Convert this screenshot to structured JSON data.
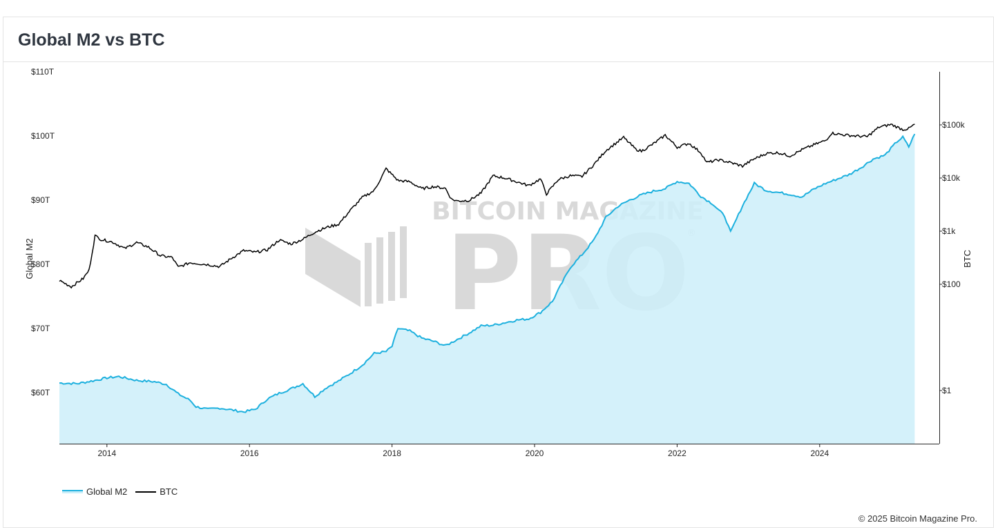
{
  "title": "Global M2 vs BTC",
  "copyright": "© 2025 Bitcoin Magazine Pro.",
  "watermark": {
    "line1": "BITCOIN MAGAZINE",
    "line2": "PRO",
    "mark": "®"
  },
  "colors": {
    "m2_line": "#1cb0de",
    "m2_fill": "#cdeff9",
    "btc_line": "#000000",
    "watermark": "#d9d9d9"
  },
  "legend": [
    {
      "key": "m2",
      "label": "Global M2"
    },
    {
      "key": "btc",
      "label": "BTC"
    }
  ],
  "chart_data": {
    "type": "line",
    "x_ticks": [
      "2014",
      "2016",
      "2018",
      "2020",
      "2022",
      "2024"
    ],
    "y_left": {
      "label": "Global M2",
      "min": 52,
      "max": 110,
      "unit": "trillion USD",
      "ticks": [
        {
          "v": 60,
          "t": "$60T"
        },
        {
          "v": 70,
          "t": "$70T"
        },
        {
          "v": 80,
          "t": "$80T"
        },
        {
          "v": 90,
          "t": "$90T"
        },
        {
          "v": 100,
          "t": "$100T"
        },
        {
          "v": 110,
          "t": "$110T"
        }
      ]
    },
    "y_right": {
      "label": "BTC",
      "scale": "log",
      "min": 0.1,
      "max": 2000000,
      "unit": "USD",
      "ticks": [
        {
          "v": 1,
          "t": "$1"
        },
        {
          "v": 100,
          "t": "$100"
        },
        {
          "v": 1000,
          "t": "$1k"
        },
        {
          "v": 10000,
          "t": "$10k"
        },
        {
          "v": 100000,
          "t": "$100k"
        }
      ]
    },
    "series": [
      {
        "name": "Global M2",
        "axis": "left",
        "type": "area",
        "points": [
          [
            "2013-05",
            61.5
          ],
          [
            "2013-08",
            61.4
          ],
          [
            "2013-11",
            61.9
          ],
          [
            "2014-01",
            62.3
          ],
          [
            "2014-03",
            62.5
          ],
          [
            "2014-06",
            61.9
          ],
          [
            "2014-09",
            61.7
          ],
          [
            "2014-11",
            61.3
          ],
          [
            "2015-01",
            59.8
          ],
          [
            "2015-03",
            58.8
          ],
          [
            "2015-04",
            57.8
          ],
          [
            "2015-06",
            57.4
          ],
          [
            "2015-08",
            57.6
          ],
          [
            "2015-10",
            57.3
          ],
          [
            "2015-12",
            57.0
          ],
          [
            "2016-02",
            57.4
          ],
          [
            "2016-04",
            59.0
          ],
          [
            "2016-06",
            59.9
          ],
          [
            "2016-08",
            60.6
          ],
          [
            "2016-10",
            61.4
          ],
          [
            "2016-12",
            59.4
          ],
          [
            "2017-02",
            60.8
          ],
          [
            "2017-04",
            61.8
          ],
          [
            "2017-06",
            63.0
          ],
          [
            "2017-08",
            64.3
          ],
          [
            "2017-10",
            66.1
          ],
          [
            "2017-12",
            66.4
          ],
          [
            "2018-01",
            67.2
          ],
          [
            "2018-02",
            70.0
          ],
          [
            "2018-04",
            69.6
          ],
          [
            "2018-06",
            68.5
          ],
          [
            "2018-08",
            68.0
          ],
          [
            "2018-10",
            67.3
          ],
          [
            "2018-12",
            68.3
          ],
          [
            "2019-02",
            69.3
          ],
          [
            "2019-04",
            70.4
          ],
          [
            "2019-06",
            70.5
          ],
          [
            "2019-08",
            70.9
          ],
          [
            "2019-10",
            71.3
          ],
          [
            "2019-12",
            71.5
          ],
          [
            "2020-02",
            72.5
          ],
          [
            "2020-04",
            74.2
          ],
          [
            "2020-05",
            76.0
          ],
          [
            "2020-07",
            79.5
          ],
          [
            "2020-09",
            81.5
          ],
          [
            "2020-11",
            83.8
          ],
          [
            "2021-01",
            87.3
          ],
          [
            "2021-03",
            89.0
          ],
          [
            "2021-05",
            90.0
          ],
          [
            "2021-07",
            90.8
          ],
          [
            "2021-09",
            91.4
          ],
          [
            "2021-11",
            91.8
          ],
          [
            "2022-01",
            92.9
          ],
          [
            "2022-03",
            92.6
          ],
          [
            "2022-05",
            90.6
          ],
          [
            "2022-07",
            89.4
          ],
          [
            "2022-09",
            87.5
          ],
          [
            "2022-10",
            85.0
          ],
          [
            "2022-12",
            89.1
          ],
          [
            "2023-02",
            92.6
          ],
          [
            "2023-04",
            91.5
          ],
          [
            "2023-06",
            91.2
          ],
          [
            "2023-08",
            90.9
          ],
          [
            "2023-10",
            90.5
          ],
          [
            "2023-12",
            91.7
          ],
          [
            "2024-02",
            92.6
          ],
          [
            "2024-04",
            93.3
          ],
          [
            "2024-06",
            94.0
          ],
          [
            "2024-08",
            95.1
          ],
          [
            "2024-10",
            96.4
          ],
          [
            "2024-12",
            97.0
          ],
          [
            "2025-02",
            99.1
          ],
          [
            "2025-03",
            99.8
          ],
          [
            "2025-04",
            98.3
          ],
          [
            "2025-05",
            100.3
          ]
        ]
      },
      {
        "name": "BTC",
        "axis": "right",
        "type": "line",
        "points": [
          [
            "2013-05",
            118
          ],
          [
            "2013-07",
            90
          ],
          [
            "2013-09",
            128
          ],
          [
            "2013-10",
            185
          ],
          [
            "2013-11",
            820
          ],
          [
            "2013-12",
            700
          ],
          [
            "2014-02",
            620
          ],
          [
            "2014-04",
            470
          ],
          [
            "2014-06",
            610
          ],
          [
            "2014-08",
            500
          ],
          [
            "2014-10",
            345
          ],
          [
            "2014-12",
            320
          ],
          [
            "2015-01",
            210
          ],
          [
            "2015-03",
            255
          ],
          [
            "2015-06",
            235
          ],
          [
            "2015-08",
            215
          ],
          [
            "2015-10",
            310
          ],
          [
            "2015-12",
            430
          ],
          [
            "2016-02",
            400
          ],
          [
            "2016-04",
            445
          ],
          [
            "2016-06",
            680
          ],
          [
            "2016-08",
            575
          ],
          [
            "2016-10",
            705
          ],
          [
            "2016-12",
            960
          ],
          [
            "2017-02",
            1180
          ],
          [
            "2017-04",
            1350
          ],
          [
            "2017-06",
            2480
          ],
          [
            "2017-08",
            4300
          ],
          [
            "2017-10",
            5800
          ],
          [
            "2017-12",
            15000
          ],
          [
            "2018-02",
            9000
          ],
          [
            "2018-04",
            8500
          ],
          [
            "2018-06",
            6300
          ],
          [
            "2018-08",
            6900
          ],
          [
            "2018-10",
            6400
          ],
          [
            "2018-11",
            4000
          ],
          [
            "2018-12",
            3700
          ],
          [
            "2019-02",
            3800
          ],
          [
            "2019-04",
            5200
          ],
          [
            "2019-06",
            11000
          ],
          [
            "2019-08",
            10000
          ],
          [
            "2019-10",
            8500
          ],
          [
            "2019-12",
            7200
          ],
          [
            "2020-02",
            9600
          ],
          [
            "2020-03",
            5000
          ],
          [
            "2020-05",
            9400
          ],
          [
            "2020-07",
            11000
          ],
          [
            "2020-09",
            10700
          ],
          [
            "2020-11",
            18000
          ],
          [
            "2021-01",
            33000
          ],
          [
            "2021-04",
            58000
          ],
          [
            "2021-06",
            35000
          ],
          [
            "2021-07",
            32000
          ],
          [
            "2021-09",
            44000
          ],
          [
            "2021-11",
            64000
          ],
          [
            "2022-01",
            38000
          ],
          [
            "2022-03",
            45000
          ],
          [
            "2022-05",
            30000
          ],
          [
            "2022-06",
            19500
          ],
          [
            "2022-08",
            22000
          ],
          [
            "2022-10",
            19500
          ],
          [
            "2022-12",
            16800
          ],
          [
            "2023-02",
            23000
          ],
          [
            "2023-04",
            29000
          ],
          [
            "2023-06",
            30000
          ],
          [
            "2023-08",
            26000
          ],
          [
            "2023-10",
            34000
          ],
          [
            "2023-12",
            42000
          ],
          [
            "2024-02",
            51000
          ],
          [
            "2024-03",
            70000
          ],
          [
            "2024-05",
            65000
          ],
          [
            "2024-07",
            62000
          ],
          [
            "2024-09",
            60000
          ],
          [
            "2024-11",
            91000
          ],
          [
            "2024-12",
            96000
          ],
          [
            "2025-01",
            102000
          ],
          [
            "2025-03",
            82000
          ],
          [
            "2025-04",
            85000
          ],
          [
            "2025-05",
            103000
          ]
        ]
      }
    ],
    "legend_position": "bottom-left",
    "grid": false
  }
}
